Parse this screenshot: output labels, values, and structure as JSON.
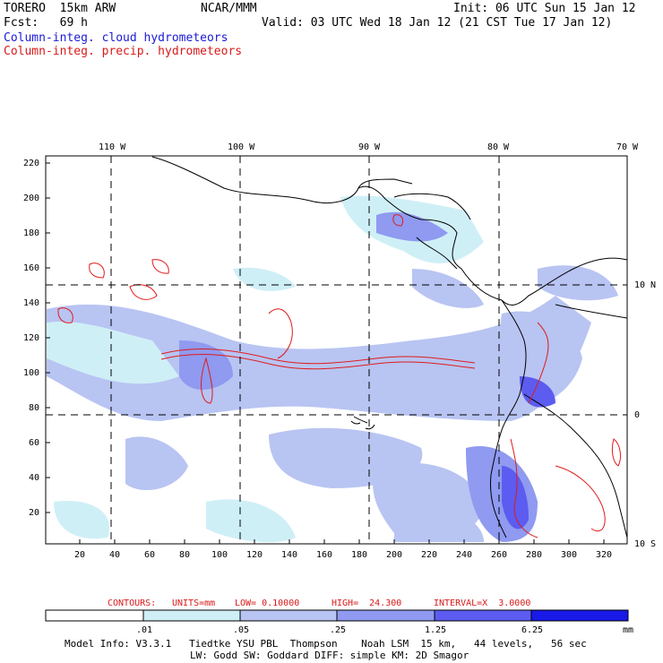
{
  "header": {
    "model": "TORERO  15km ARW",
    "center": "NCAR/MMM",
    "init": "Init: 06 UTC Sun 15 Jan 12",
    "fcst": "Fcst:   69 h",
    "valid": "Valid: 03 UTC Wed 18 Jan 12 (21 CST Tue 17 Jan 12)",
    "field1": "Column-integ. cloud hydrometeors",
    "field2": "Column-integ. precip. hydrometeors"
  },
  "map": {
    "lon_labels": [
      "110 W",
      "100 W",
      "90 W",
      "80 W",
      "70 W"
    ],
    "lat_labels": [
      "10 N",
      "0",
      "10 S"
    ],
    "y_ticks": [
      "220",
      "200",
      "180",
      "160",
      "140",
      "120",
      "100",
      "80",
      "60",
      "40",
      "20"
    ],
    "x_ticks": [
      "20",
      "40",
      "60",
      "80",
      "100",
      "120",
      "140",
      "160",
      "180",
      "200",
      "220",
      "240",
      "260",
      "280",
      "300",
      "320"
    ]
  },
  "contour_info": {
    "contours": "CONTOURS:",
    "units": "UNITS=mm",
    "low": "LOW= 0.10000",
    "high": "HIGH=  24.300",
    "interval": "INTERVAL=X  3.0000"
  },
  "colorbar": {
    "labels": [
      ".01",
      ".05",
      ".25",
      "1.25",
      "6.25"
    ],
    "unit": "mm",
    "colors": [
      "#ffffff",
      "#cfeff7",
      "#b8c4f2",
      "#8f9af0",
      "#5c5cf0",
      "#1a1ae8"
    ]
  },
  "footer": {
    "line1": "Model Info: V3.3.1   Tiedtke YSU PBL  Thompson    Noah LSM  15 km,   44 levels,   56 sec",
    "line2": "LW: Godd SW: Goddard DIFF: simple KM: 2D Smagor"
  }
}
